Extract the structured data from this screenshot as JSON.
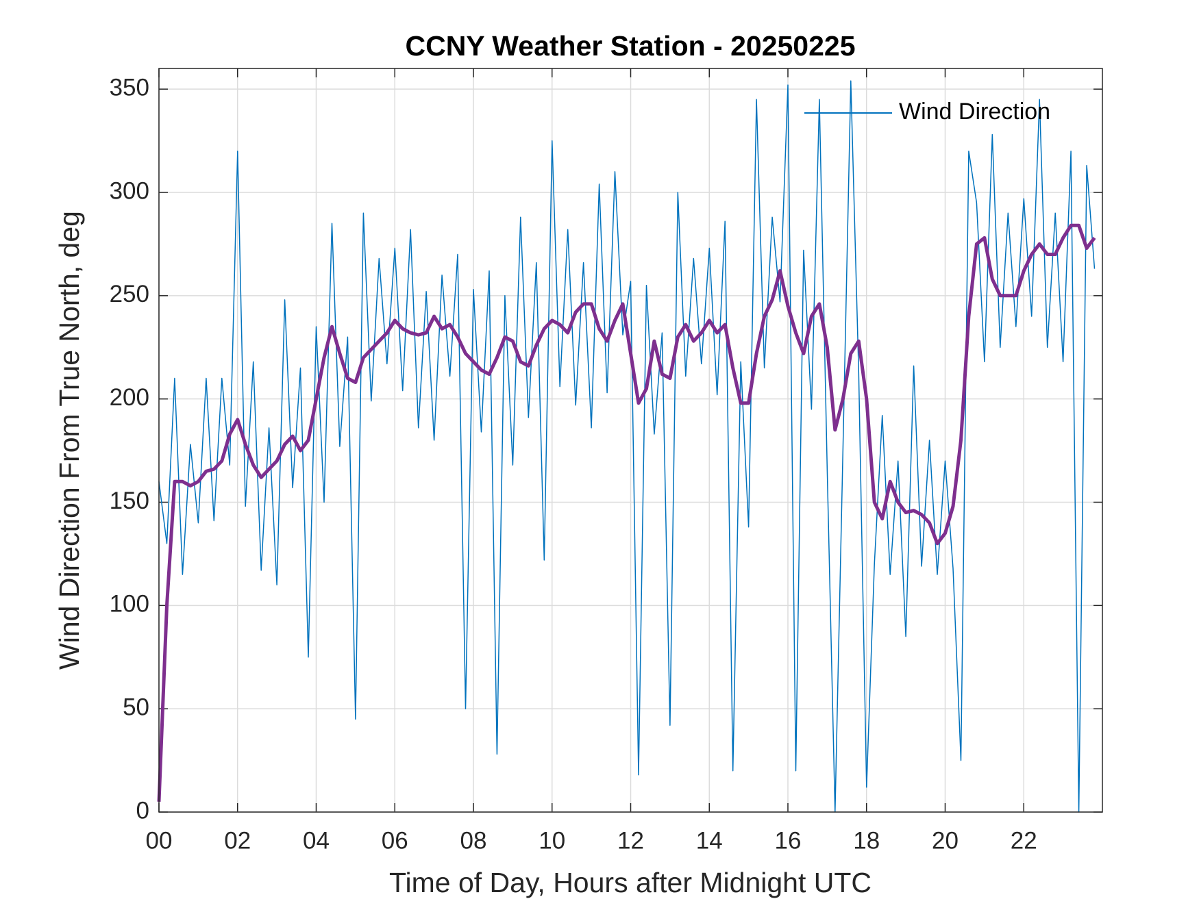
{
  "chart_data": {
    "type": "line",
    "title": "CCNY Weather Station - 20250225",
    "x_label": "Time of Day, Hours after Midnight UTC",
    "y_label": "Wind Direction From True North, deg",
    "xlim": [
      0,
      24
    ],
    "ylim": [
      0,
      360
    ],
    "xticks": [
      {
        "value": 0,
        "label": "00"
      },
      {
        "value": 2,
        "label": "02"
      },
      {
        "value": 4,
        "label": "04"
      },
      {
        "value": 6,
        "label": "06"
      },
      {
        "value": 8,
        "label": "08"
      },
      10,
      12,
      14,
      16,
      18,
      20,
      22
    ],
    "yticks": [
      0,
      50,
      100,
      150,
      200,
      250,
      300,
      350
    ],
    "grid": true,
    "legend": "northeast",
    "x": [
      0.0,
      0.2,
      0.4,
      0.6,
      0.8,
      1.0,
      1.2,
      1.4,
      1.6,
      1.8,
      2.0,
      2.2,
      2.4,
      2.6,
      2.8,
      3.0,
      3.2,
      3.4,
      3.6,
      3.8,
      4.0,
      4.2,
      4.4,
      4.6,
      4.8,
      5.0,
      5.2,
      5.4,
      5.6,
      5.8,
      6.0,
      6.2,
      6.4,
      6.6,
      6.8,
      7.0,
      7.2,
      7.4,
      7.6,
      7.8,
      8.0,
      8.2,
      8.4,
      8.6,
      8.8,
      9.0,
      9.2,
      9.4,
      9.6,
      9.8,
      10.0,
      10.2,
      10.4,
      10.6,
      10.8,
      11.0,
      11.2,
      11.4,
      11.6,
      11.8,
      12.0,
      12.2,
      12.4,
      12.6,
      12.8,
      13.0,
      13.2,
      13.4,
      13.6,
      13.8,
      14.0,
      14.2,
      14.4,
      14.6,
      14.8,
      15.0,
      15.2,
      15.4,
      15.6,
      15.8,
      16.0,
      16.2,
      16.4,
      16.6,
      16.8,
      17.0,
      17.2,
      17.4,
      17.6,
      17.8,
      18.0,
      18.2,
      18.4,
      18.6,
      18.8,
      19.0,
      19.2,
      19.4,
      19.6,
      19.8,
      20.0,
      20.2,
      20.4,
      20.6,
      20.8,
      21.0,
      21.2,
      21.4,
      21.6,
      21.8,
      22.0,
      22.2,
      22.4,
      22.6,
      22.8,
      23.0,
      23.2,
      23.4,
      23.6,
      23.8
    ],
    "series": [
      {
        "name": "Wind Direction",
        "color": "#0072bd",
        "width": 1.5,
        "values": [
          160,
          130,
          210,
          115,
          178,
          140,
          210,
          141,
          210,
          168,
          320,
          148,
          218,
          117,
          186,
          110,
          248,
          157,
          215,
          75,
          235,
          150,
          285,
          177,
          230,
          45,
          290,
          199,
          268,
          217,
          273,
          204,
          282,
          186,
          252,
          180,
          260,
          211,
          270,
          50,
          253,
          184,
          262,
          28,
          250,
          168,
          288,
          191,
          266,
          122,
          325,
          206,
          282,
          197,
          266,
          186,
          304,
          203,
          310,
          231,
          257,
          18,
          255,
          183,
          232,
          42,
          300,
          211,
          268,
          217,
          273,
          202,
          286,
          20,
          218,
          138,
          345,
          215,
          288,
          247,
          352,
          20,
          272,
          195,
          345,
          165,
          0,
          175,
          354,
          213,
          12,
          120,
          192,
          115,
          170,
          85,
          216,
          119,
          180,
          115,
          170,
          118,
          25,
          320,
          295,
          218,
          328,
          225,
          290,
          235,
          297,
          240,
          345,
          225,
          290,
          218,
          320,
          0,
          313,
          263
        ]
      },
      {
        "color": "#7e2f8e",
        "width": 5,
        "values": [
          5,
          100,
          160,
          160,
          158,
          160,
          165,
          166,
          170,
          183,
          190,
          178,
          168,
          162,
          166,
          170,
          178,
          182,
          175,
          180,
          200,
          220,
          235,
          222,
          210,
          208,
          220,
          224,
          228,
          232,
          238,
          234,
          232,
          231,
          232,
          240,
          234,
          236,
          230,
          222,
          218,
          214,
          212,
          220,
          230,
          228,
          218,
          216,
          226,
          234,
          238,
          236,
          232,
          242,
          246,
          246,
          234,
          228,
          238,
          246,
          222,
          198,
          205,
          228,
          212,
          210,
          230,
          236,
          228,
          232,
          238,
          232,
          236,
          215,
          198,
          198,
          222,
          240,
          248,
          262,
          245,
          232,
          222,
          240,
          246,
          225,
          185,
          200,
          222,
          228,
          200,
          150,
          142,
          160,
          150,
          145,
          146,
          144,
          140,
          130,
          135,
          148,
          180,
          240,
          275,
          278,
          258,
          250,
          250,
          250,
          262,
          270,
          275,
          270,
          270,
          278,
          284,
          284,
          273,
          278
        ]
      }
    ]
  }
}
